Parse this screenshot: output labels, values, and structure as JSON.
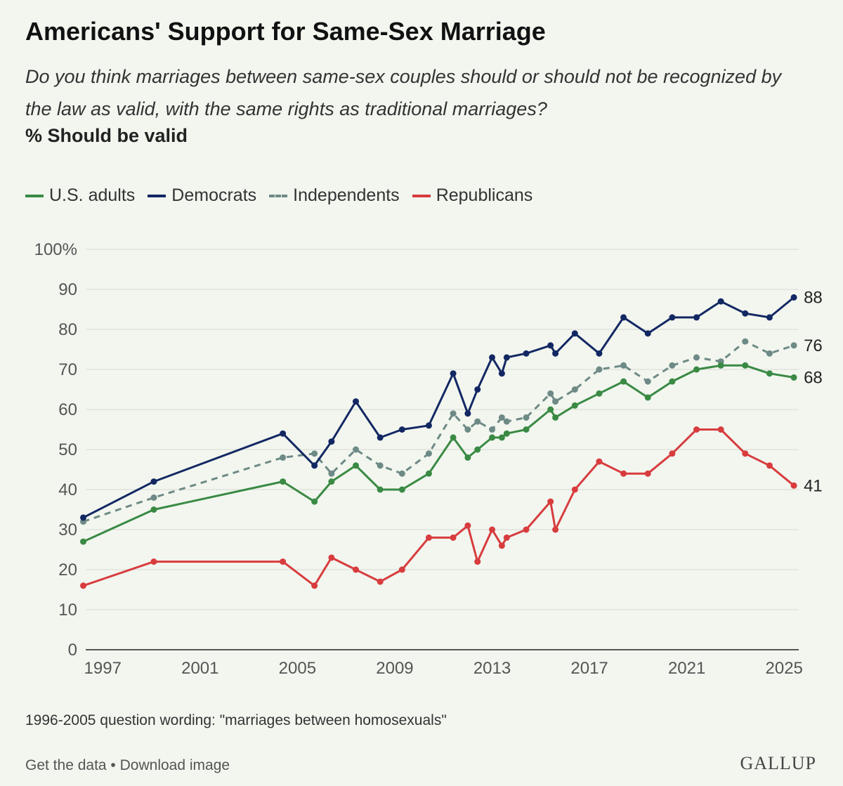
{
  "header": {
    "title": "Americans' Support for Same-Sex Marriage",
    "subtitle": "Do you think marriages between same-sex couples should or should not be recognized by the law as valid, with the same rights as traditional marriages?",
    "measure": "% Should be valid"
  },
  "legend": [
    {
      "label": "U.S. adults",
      "color": "#3a8a44"
    },
    {
      "label": "Democrats",
      "color": "#132863"
    },
    {
      "label": "Independents",
      "color": "#6e8a86"
    },
    {
      "label": "Republicans",
      "color": "#d83c3e"
    }
  ],
  "chart_data": {
    "type": "line",
    "title": "Americans' Support for Same-Sex Marriage",
    "ylabel": "% Should be valid",
    "xlabel": "",
    "xlim": [
      1996.3,
      2025.6
    ],
    "ylim": [
      0,
      100
    ],
    "xticks": [
      "1997",
      "2001",
      "2005",
      "2009",
      "2013",
      "2017",
      "2021",
      "2025"
    ],
    "xtick_values": [
      1997,
      2001,
      2005,
      2009,
      2013,
      2017,
      2021,
      2025
    ],
    "yticks": [
      "0",
      "10",
      "20",
      "30",
      "40",
      "50",
      "60",
      "70",
      "80",
      "90",
      "100%"
    ],
    "ytick_values": [
      0,
      10,
      20,
      30,
      40,
      50,
      60,
      70,
      80,
      90,
      100
    ],
    "grid": true,
    "series": [
      {
        "name": "U.S. adults",
        "color": "#3a8a44",
        "dashed": false,
        "end_label": "68",
        "points": [
          [
            1996.2,
            27
          ],
          [
            1999.1,
            35
          ],
          [
            2004.4,
            42
          ],
          [
            2005.7,
            37
          ],
          [
            2006.4,
            42
          ],
          [
            2007.4,
            46
          ],
          [
            2008.4,
            40
          ],
          [
            2009.3,
            40
          ],
          [
            2010.4,
            44
          ],
          [
            2011.4,
            53
          ],
          [
            2012.0,
            48
          ],
          [
            2012.4,
            50
          ],
          [
            2013.0,
            53
          ],
          [
            2013.4,
            53
          ],
          [
            2013.6,
            54
          ],
          [
            2014.4,
            55
          ],
          [
            2015.4,
            60
          ],
          [
            2015.6,
            58
          ],
          [
            2016.4,
            61
          ],
          [
            2017.4,
            64
          ],
          [
            2018.4,
            67
          ],
          [
            2019.4,
            63
          ],
          [
            2020.4,
            67
          ],
          [
            2021.4,
            70
          ],
          [
            2022.4,
            71
          ],
          [
            2023.4,
            71
          ],
          [
            2024.4,
            69
          ],
          [
            2025.4,
            68
          ]
        ]
      },
      {
        "name": "Democrats",
        "color": "#132863",
        "dashed": false,
        "end_label": "88",
        "points": [
          [
            1996.2,
            33
          ],
          [
            1999.1,
            42
          ],
          [
            2004.4,
            54
          ],
          [
            2005.7,
            46
          ],
          [
            2006.4,
            52
          ],
          [
            2007.4,
            62
          ],
          [
            2008.4,
            53
          ],
          [
            2009.3,
            55
          ],
          [
            2010.4,
            56
          ],
          [
            2011.4,
            69
          ],
          [
            2012.0,
            59
          ],
          [
            2012.4,
            65
          ],
          [
            2013.0,
            73
          ],
          [
            2013.4,
            69
          ],
          [
            2013.6,
            73
          ],
          [
            2014.4,
            74
          ],
          [
            2015.4,
            76
          ],
          [
            2015.6,
            74
          ],
          [
            2016.4,
            79
          ],
          [
            2017.4,
            74
          ],
          [
            2018.4,
            83
          ],
          [
            2019.4,
            79
          ],
          [
            2020.4,
            83
          ],
          [
            2021.4,
            83
          ],
          [
            2022.4,
            87
          ],
          [
            2023.4,
            84
          ],
          [
            2024.4,
            83
          ],
          [
            2025.4,
            88
          ]
        ]
      },
      {
        "name": "Independents",
        "color": "#6e8a86",
        "dashed": true,
        "end_label": "76",
        "points": [
          [
            1996.2,
            32
          ],
          [
            1999.1,
            38
          ],
          [
            2004.4,
            48
          ],
          [
            2005.7,
            49
          ],
          [
            2006.4,
            44
          ],
          [
            2007.4,
            50
          ],
          [
            2008.4,
            46
          ],
          [
            2009.3,
            44
          ],
          [
            2010.4,
            49
          ],
          [
            2011.4,
            59
          ],
          [
            2012.0,
            55
          ],
          [
            2012.4,
            57
          ],
          [
            2013.0,
            55
          ],
          [
            2013.4,
            58
          ],
          [
            2013.6,
            57
          ],
          [
            2014.4,
            58
          ],
          [
            2015.4,
            64
          ],
          [
            2015.6,
            62
          ],
          [
            2016.4,
            65
          ],
          [
            2017.4,
            70
          ],
          [
            2018.4,
            71
          ],
          [
            2019.4,
            67
          ],
          [
            2020.4,
            71
          ],
          [
            2021.4,
            73
          ],
          [
            2022.4,
            72
          ],
          [
            2023.4,
            77
          ],
          [
            2024.4,
            74
          ],
          [
            2025.4,
            76
          ]
        ]
      },
      {
        "name": "Republicans",
        "color": "#d83c3e",
        "dashed": false,
        "end_label": "41",
        "points": [
          [
            1996.2,
            16
          ],
          [
            1999.1,
            22
          ],
          [
            2004.4,
            22
          ],
          [
            2005.7,
            16
          ],
          [
            2006.4,
            23
          ],
          [
            2007.4,
            20
          ],
          [
            2008.4,
            17
          ],
          [
            2009.3,
            20
          ],
          [
            2010.4,
            28
          ],
          [
            2011.4,
            28
          ],
          [
            2012.0,
            31
          ],
          [
            2012.4,
            22
          ],
          [
            2013.0,
            30
          ],
          [
            2013.4,
            26
          ],
          [
            2013.6,
            28
          ],
          [
            2014.4,
            30
          ],
          [
            2015.4,
            37
          ],
          [
            2015.6,
            30
          ],
          [
            2016.4,
            40
          ],
          [
            2017.4,
            47
          ],
          [
            2018.4,
            44
          ],
          [
            2019.4,
            44
          ],
          [
            2020.4,
            49
          ],
          [
            2021.4,
            55
          ],
          [
            2022.4,
            55
          ],
          [
            2023.4,
            49
          ],
          [
            2024.4,
            46
          ],
          [
            2025.4,
            41
          ]
        ]
      }
    ]
  },
  "note": "1996-2005 question wording: \"marriages between homosexuals\"",
  "footer": {
    "get_data": "Get the data",
    "separator": " • ",
    "download": "Download image",
    "logo": "GALLUP"
  }
}
